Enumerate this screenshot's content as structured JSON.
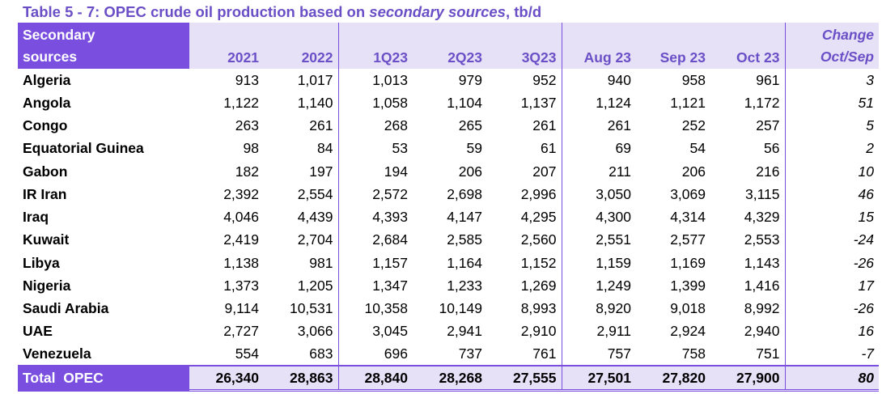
{
  "title": {
    "prefix": "Table 5 - 7: OPEC crude oil production based on ",
    "emphasis": "secondary sources",
    "suffix": ", tb/d"
  },
  "header": {
    "corner_line1": "Secondary",
    "corner_line2": "sources",
    "columns": [
      "2021",
      "2022",
      "1Q23",
      "2Q23",
      "3Q23",
      "Aug 23",
      "Sep 23",
      "Oct 23"
    ],
    "change_line1": "Change",
    "change_line2": "Oct/Sep"
  },
  "rows": [
    {
      "country": "Algeria",
      "values": [
        "913",
        "1,017",
        "1,013",
        "979",
        "952",
        "940",
        "958",
        "961"
      ],
      "change": "3"
    },
    {
      "country": "Angola",
      "values": [
        "1,122",
        "1,140",
        "1,058",
        "1,104",
        "1,137",
        "1,124",
        "1,121",
        "1,172"
      ],
      "change": "51"
    },
    {
      "country": "Congo",
      "values": [
        "263",
        "261",
        "268",
        "265",
        "261",
        "261",
        "252",
        "257"
      ],
      "change": "5"
    },
    {
      "country": "Equatorial Guinea",
      "values": [
        "98",
        "84",
        "53",
        "59",
        "61",
        "69",
        "54",
        "56"
      ],
      "change": "2"
    },
    {
      "country": "Gabon",
      "values": [
        "182",
        "197",
        "194",
        "206",
        "207",
        "211",
        "206",
        "216"
      ],
      "change": "10"
    },
    {
      "country": "IR Iran",
      "values": [
        "2,392",
        "2,554",
        "2,572",
        "2,698",
        "2,996",
        "3,050",
        "3,069",
        "3,115"
      ],
      "change": "46"
    },
    {
      "country": "Iraq",
      "values": [
        "4,046",
        "4,439",
        "4,393",
        "4,147",
        "4,295",
        "4,300",
        "4,314",
        "4,329"
      ],
      "change": "15"
    },
    {
      "country": "Kuwait",
      "values": [
        "2,419",
        "2,704",
        "2,684",
        "2,585",
        "2,560",
        "2,551",
        "2,577",
        "2,553"
      ],
      "change": "-24"
    },
    {
      "country": "Libya",
      "values": [
        "1,138",
        "981",
        "1,157",
        "1,164",
        "1,152",
        "1,159",
        "1,169",
        "1,143"
      ],
      "change": "-26"
    },
    {
      "country": "Nigeria",
      "values": [
        "1,373",
        "1,205",
        "1,347",
        "1,233",
        "1,269",
        "1,249",
        "1,399",
        "1,416"
      ],
      "change": "17"
    },
    {
      "country": "Saudi Arabia",
      "values": [
        "9,114",
        "10,531",
        "10,358",
        "10,149",
        "8,993",
        "8,920",
        "9,018",
        "8,992"
      ],
      "change": "-26"
    },
    {
      "country": "UAE",
      "values": [
        "2,727",
        "3,066",
        "3,045",
        "2,941",
        "2,910",
        "2,911",
        "2,924",
        "2,940"
      ],
      "change": "16"
    },
    {
      "country": "Venezuela",
      "values": [
        "554",
        "683",
        "696",
        "737",
        "761",
        "757",
        "758",
        "751"
      ],
      "change": "-7"
    }
  ],
  "total": {
    "label": "Total  OPEC",
    "values": [
      "26,340",
      "28,863",
      "28,840",
      "28,268",
      "27,555",
      "27,501",
      "27,820",
      "27,900"
    ],
    "change": "80"
  },
  "colors": {
    "accent": "#7a4fe0",
    "header_bg": "#e6e1f7",
    "title_text": "#6b4fc7"
  }
}
